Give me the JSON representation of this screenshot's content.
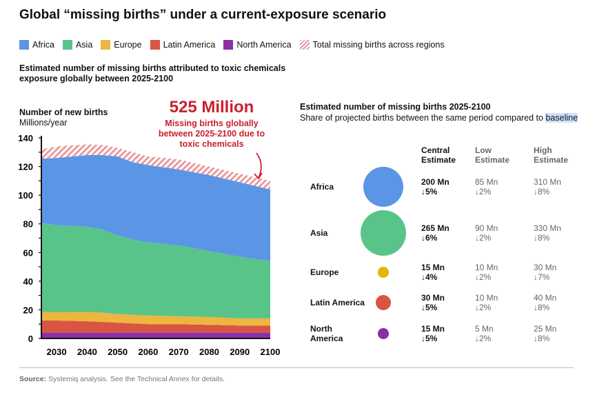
{
  "title": "Global “missing births” under a current-exposure scenario",
  "legend": [
    {
      "label": "Africa",
      "color": "#5b96e6"
    },
    {
      "label": "Asia",
      "color": "#58c48a"
    },
    {
      "label": "Europe",
      "color": "#ecb63f"
    },
    {
      "label": "Latin America",
      "color": "#d95543"
    },
    {
      "label": "North America",
      "color": "#8a2fa8"
    },
    {
      "label": "Total missing births across regions",
      "color": "#e89aa0"
    }
  ],
  "subtitle": "Estimated number of missing births attributed to toxic chemicals exposure globally between 2025-2100",
  "callout": {
    "headline": "525 Million",
    "text": "Missing births globally between 2025-2100 due to toxic chemicals"
  },
  "chart_data": {
    "type": "area",
    "stacked": true,
    "ytitle": "Number of new births",
    "ylabel": "Millions/year",
    "ylim": [
      0,
      140
    ],
    "yticks": [
      "0",
      "20",
      "40",
      "60",
      "80",
      "100",
      "120",
      "140"
    ],
    "xlim": [
      2025,
      2100
    ],
    "xticks": [
      "2030",
      "2040",
      "2050",
      "2060",
      "2070",
      "2080",
      "2090",
      "2100"
    ],
    "x": [
      2025,
      2030,
      2040,
      2045,
      2050,
      2055,
      2060,
      2070,
      2080,
      2090,
      2100
    ],
    "series": [
      {
        "name": "North America",
        "color": "#8a2fa8",
        "values": [
          4,
          4,
          4,
          4,
          4,
          4,
          4,
          4,
          4,
          4,
          4
        ]
      },
      {
        "name": "Latin America",
        "color": "#d95543",
        "values": [
          8.5,
          8.5,
          8,
          7.5,
          7,
          6.5,
          6,
          6,
          5.5,
          5,
          5
        ]
      },
      {
        "name": "Europe",
        "color": "#ecb63f",
        "values": [
          6,
          6,
          6.5,
          6.5,
          6,
          6,
          6,
          5.5,
          5.5,
          5,
          5
        ]
      },
      {
        "name": "Asia",
        "color": "#58c48a",
        "values": [
          62,
          60.5,
          59.5,
          58,
          55,
          52.5,
          51,
          49.5,
          46,
          43,
          40
        ]
      },
      {
        "name": "Africa",
        "color": "#5b96e6",
        "values": [
          45,
          47,
          50,
          52,
          55,
          54,
          54,
          53,
          53,
          52,
          50
        ]
      },
      {
        "name": "Total missing births across regions",
        "color": "#e89aa0",
        "pattern": "hatch",
        "values": [
          6.5,
          8,
          7.5,
          7,
          6,
          7,
          6,
          7,
          6,
          6,
          6
        ]
      }
    ]
  },
  "right": {
    "title": "Estimated number of missing births 2025-2100",
    "subtitle_pre": "Share of projected births between the same period compared to ",
    "subtitle_hl": "baseline",
    "headers": {
      "central": [
        "Central",
        "Estimate"
      ],
      "low": [
        "Low",
        "Estimate"
      ],
      "high": [
        "High",
        "Estimate"
      ]
    },
    "rows": [
      {
        "region": [
          "Africa"
        ],
        "color": "#5b96e6",
        "central_value": 200,
        "central": "200 Mn",
        "central_pct": "↓5%",
        "low": "85 Mn",
        "low_pct": "↓2%",
        "high": "310 Mn",
        "high_pct": "↓8%"
      },
      {
        "region": [
          "Asia"
        ],
        "color": "#58c48a",
        "central_value": 265,
        "central": "265 Mn",
        "central_pct": "↓6%",
        "low": "90 Mn",
        "low_pct": "↓2%",
        "high": "330 Mn",
        "high_pct": "↓8%"
      },
      {
        "region": [
          "Europe"
        ],
        "color": "#e2b800",
        "central_value": 15,
        "central": "15 Mn",
        "central_pct": "↓4%",
        "low": "10 Mn",
        "low_pct": "↓2%",
        "high": "30 Mn",
        "high_pct": "↓7%"
      },
      {
        "region": [
          "Latin America"
        ],
        "color": "#d95543",
        "central_value": 30,
        "central": "30 Mn",
        "central_pct": "↓5%",
        "low": "10 Mn",
        "low_pct": "↓2%",
        "high": "40 Mn",
        "high_pct": "↓8%"
      },
      {
        "region": [
          "North",
          "America"
        ],
        "color": "#8a2fa8",
        "central_value": 15,
        "central": "15 Mn",
        "central_pct": "↓5%",
        "low": "5 Mn",
        "low_pct": "↓2%",
        "high": "25 Mn",
        "high_pct": "↓8%"
      }
    ]
  },
  "source": {
    "label": "Source:",
    "text": " Systemiq analysis. See the Technical Annex for details."
  }
}
